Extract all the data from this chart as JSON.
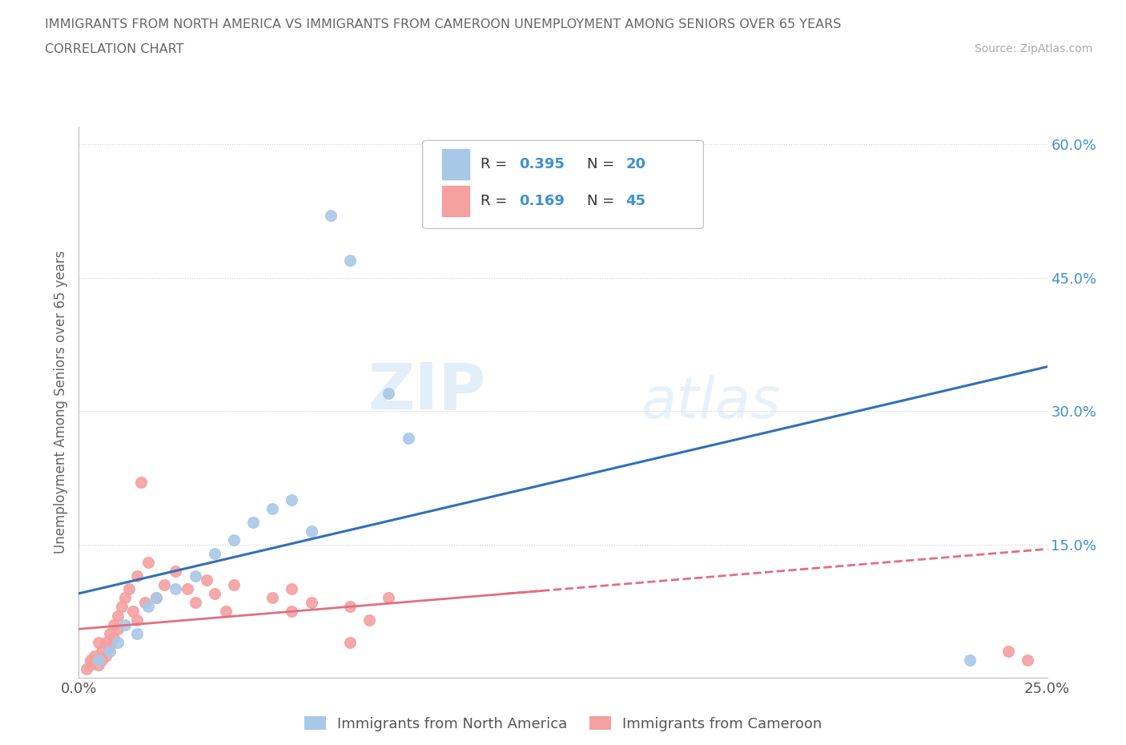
{
  "title_line1": "IMMIGRANTS FROM NORTH AMERICA VS IMMIGRANTS FROM CAMEROON UNEMPLOYMENT AMONG SENIORS OVER 65 YEARS",
  "title_line2": "CORRELATION CHART",
  "source": "Source: ZipAtlas.com",
  "ylabel": "Unemployment Among Seniors over 65 years",
  "xlim": [
    0.0,
    0.25
  ],
  "ylim": [
    0.0,
    0.62
  ],
  "xticks": [
    0.0,
    0.05,
    0.1,
    0.15,
    0.2,
    0.25
  ],
  "xticklabels": [
    "0.0%",
    "",
    "",
    "",
    "",
    "25.0%"
  ],
  "yticks_right": [
    0.0,
    0.15,
    0.3,
    0.45,
    0.6
  ],
  "ytick_right_labels": [
    "",
    "15.0%",
    "30.0%",
    "45.0%",
    "60.0%"
  ],
  "north_america_color": "#a8c8e8",
  "cameroon_color": "#f4a0a0",
  "north_america_line_color": "#3070b8",
  "cameroon_line_color": "#e07080",
  "watermark_zip": "ZIP",
  "watermark_atlas": "atlas",
  "north_america_x": [
    0.005,
    0.008,
    0.01,
    0.012,
    0.015,
    0.018,
    0.02,
    0.025,
    0.03,
    0.035,
    0.04,
    0.045,
    0.05,
    0.055,
    0.06,
    0.065,
    0.07,
    0.08,
    0.085,
    0.23
  ],
  "north_america_y": [
    0.02,
    0.03,
    0.04,
    0.06,
    0.05,
    0.08,
    0.09,
    0.1,
    0.115,
    0.14,
    0.155,
    0.175,
    0.19,
    0.2,
    0.165,
    0.52,
    0.47,
    0.32,
    0.27,
    0.02
  ],
  "cameroon_x": [
    0.002,
    0.003,
    0.003,
    0.004,
    0.004,
    0.005,
    0.005,
    0.006,
    0.006,
    0.007,
    0.007,
    0.008,
    0.008,
    0.009,
    0.009,
    0.01,
    0.01,
    0.011,
    0.012,
    0.013,
    0.014,
    0.015,
    0.015,
    0.016,
    0.017,
    0.018,
    0.02,
    0.022,
    0.025,
    0.028,
    0.03,
    0.033,
    0.035,
    0.038,
    0.04,
    0.05,
    0.055,
    0.055,
    0.06,
    0.07,
    0.07,
    0.075,
    0.08,
    0.24,
    0.245
  ],
  "cameroon_y": [
    0.01,
    0.02,
    0.015,
    0.025,
    0.02,
    0.04,
    0.015,
    0.03,
    0.02,
    0.04,
    0.025,
    0.05,
    0.035,
    0.06,
    0.045,
    0.07,
    0.055,
    0.08,
    0.09,
    0.1,
    0.075,
    0.115,
    0.065,
    0.22,
    0.085,
    0.13,
    0.09,
    0.105,
    0.12,
    0.1,
    0.085,
    0.11,
    0.095,
    0.075,
    0.105,
    0.09,
    0.1,
    0.075,
    0.085,
    0.04,
    0.08,
    0.065,
    0.09,
    0.03,
    0.02
  ],
  "grid_color": "#cccccc",
  "background_color": "#ffffff",
  "title_color": "#666666",
  "axis_label_color": "#666666",
  "right_tick_color": "#4090d0",
  "legend_text_color": "#333333",
  "legend_value_color": "#4090d0"
}
